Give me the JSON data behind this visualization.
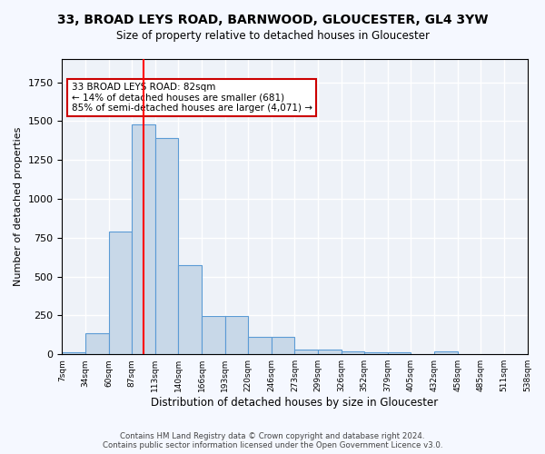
{
  "title": "33, BROAD LEYS ROAD, BARNWOOD, GLOUCESTER, GL4 3YW",
  "subtitle": "Size of property relative to detached houses in Gloucester",
  "xlabel": "Distribution of detached houses by size in Gloucester",
  "ylabel": "Number of detached properties",
  "bar_values": [
    15,
    135,
    790,
    1480,
    1390,
    575,
    245,
    245,
    115,
    115,
    30,
    30,
    20,
    15,
    15,
    0,
    20,
    0,
    0,
    0
  ],
  "bin_labels": [
    "7sqm",
    "34sqm",
    "60sqm",
    "87sqm",
    "113sqm",
    "140sqm",
    "166sqm",
    "193sqm",
    "220sqm",
    "246sqm",
    "273sqm",
    "299sqm",
    "326sqm",
    "352sqm",
    "379sqm",
    "405sqm",
    "432sqm",
    "458sqm",
    "485sqm",
    "511sqm",
    "538sqm"
  ],
  "bar_color": "#c8d8e8",
  "bar_edge_color": "#5b9bd5",
  "bg_color": "#eef2f8",
  "grid_color": "#ffffff",
  "red_line_x": 3.0,
  "annotation_text": "33 BROAD LEYS ROAD: 82sqm\n← 14% of detached houses are smaller (681)\n85% of semi-detached houses are larger (4,071) →",
  "annotation_box_color": "#ffffff",
  "annotation_box_edge_color": "#cc0000",
  "footer": "Contains HM Land Registry data © Crown copyright and database right 2024.\nContains public sector information licensed under the Open Government Licence v3.0.",
  "ylim": [
    0,
    1900
  ]
}
